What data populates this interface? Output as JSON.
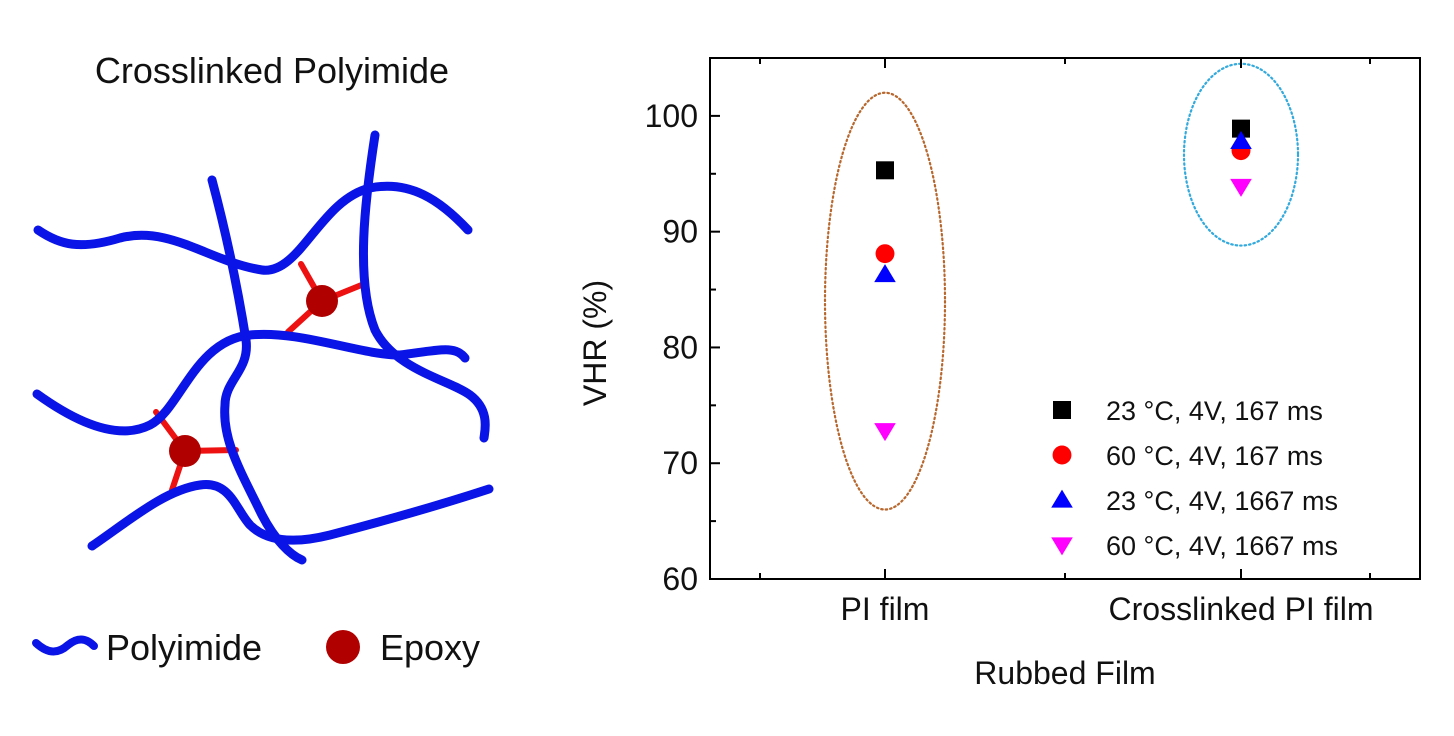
{
  "schematic": {
    "title": "Crosslinked Polyimide",
    "legend": [
      {
        "label": "Polyimide",
        "icon": "polyimide-chain-icon",
        "color": "#0a14e6"
      },
      {
        "label": "Epoxy",
        "icon": "epoxy-node-icon",
        "color": "#b00000"
      }
    ],
    "colors": {
      "chain": "#0a14e6",
      "crosslink": "#ee1111",
      "node": "#b00000"
    }
  },
  "chart_data": {
    "type": "scatter",
    "categories": [
      "PI film",
      "Crosslinked PI film"
    ],
    "xlabel": "Rubbed Film",
    "ylabel": "VHR (%)",
    "ylim": [
      60,
      105
    ],
    "yticks": [
      60,
      70,
      80,
      90,
      100
    ],
    "grid": false,
    "legend_position": "bottom-right",
    "series": [
      {
        "name": "23 °C, 4V, 167 ms",
        "marker": "square",
        "color": "#000000",
        "values": [
          95.3,
          98.9
        ]
      },
      {
        "name": "60 °C, 4V, 167 ms",
        "marker": "circle",
        "color": "#ff0000",
        "values": [
          88.1,
          97.0
        ]
      },
      {
        "name": "23 °C, 4V, 1667 ms",
        "marker": "triangle-up",
        "color": "#0000ff",
        "values": [
          86.3,
          97.8
        ]
      },
      {
        "name": "60 °C, 4V, 1667 ms",
        "marker": "triangle-down",
        "color": "#ff00ff",
        "values": [
          72.8,
          93.9
        ]
      }
    ],
    "annotations": [
      {
        "type": "dotted-ellipse",
        "category": "PI film",
        "y_range": [
          66,
          102
        ],
        "color": "#b8682e"
      },
      {
        "type": "dotted-ellipse",
        "category": "Crosslinked PI film",
        "y_range": [
          88.8,
          104.5
        ],
        "color": "#33aadd"
      }
    ]
  }
}
